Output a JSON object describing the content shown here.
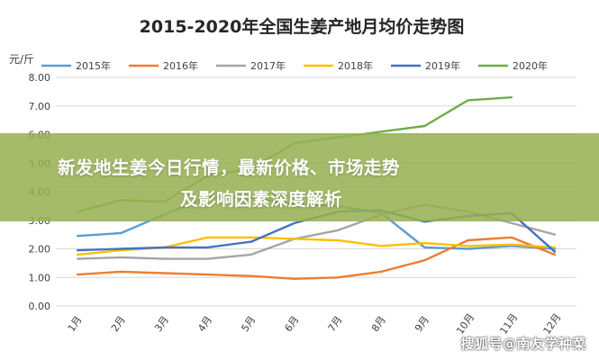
{
  "chart_data": {
    "type": "line",
    "title": "2015-2020年全国生姜产地月均价走势图",
    "ylabel": "元/斤",
    "ylim": [
      0,
      8
    ],
    "yticks": [
      "0.00",
      "1.00",
      "2.00",
      "3.00",
      "4.00",
      "5.00",
      "6.00",
      "7.00",
      "8.00"
    ],
    "categories": [
      "1月",
      "2月",
      "3月",
      "4月",
      "5月",
      "6月",
      "7月",
      "8月",
      "9月",
      "10月",
      "11月",
      "12月"
    ],
    "grid": true,
    "legend_position": "top",
    "series": [
      {
        "name": "2015年",
        "color": "#5b9bd5",
        "values": [
          2.45,
          2.55,
          3.2,
          3.8,
          3.8,
          3.55,
          3.5,
          3.25,
          2.05,
          2.0,
          2.1,
          2.0
        ]
      },
      {
        "name": "2016年",
        "color": "#ed7d31",
        "values": [
          1.1,
          1.2,
          1.15,
          1.1,
          1.05,
          0.95,
          1.0,
          1.2,
          1.6,
          2.3,
          2.4,
          1.8
        ]
      },
      {
        "name": "2017年",
        "color": "#a5a5a5",
        "values": [
          1.65,
          1.7,
          1.65,
          1.65,
          1.8,
          2.35,
          2.65,
          3.2,
          3.55,
          3.3,
          2.9,
          2.5
        ]
      },
      {
        "name": "2018年",
        "color": "#ffc000",
        "values": [
          1.8,
          1.95,
          2.05,
          2.4,
          2.4,
          2.35,
          2.3,
          2.1,
          2.2,
          2.1,
          2.15,
          2.05
        ]
      },
      {
        "name": "2019年",
        "color": "#4472c4",
        "values": [
          1.95,
          2.0,
          2.05,
          2.05,
          2.25,
          2.9,
          3.3,
          3.35,
          2.95,
          3.15,
          3.25,
          1.9
        ]
      },
      {
        "name": "2020年",
        "color": "#70ad47",
        "values": [
          3.3,
          3.7,
          3.65,
          4.55,
          4.8,
          5.7,
          5.9,
          6.1,
          6.3,
          7.2,
          7.3,
          null
        ]
      }
    ]
  },
  "banner": {
    "line1": "新发地生姜今日行情，最新价格、市场走势",
    "line2": "及影响因素深度解析"
  },
  "watermark": "搜狐号@南友学种菜"
}
